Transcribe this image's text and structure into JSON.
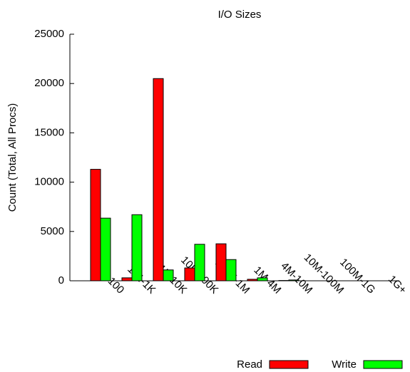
{
  "chart_data": {
    "type": "bar",
    "title": "I/O Sizes",
    "y_label": "Count (Total, All Procs)",
    "categories": [
      "0-100",
      "101-1K",
      "1K-10K",
      "10K-100K",
      "100K-1M",
      "1M-4M",
      "4M-10M",
      "10M-100M",
      "100M-1G",
      "1G+"
    ],
    "series": [
      {
        "name": "Read",
        "color": "#ff0000",
        "values": [
          11300,
          300,
          20500,
          1300,
          3750,
          150,
          30,
          0,
          0,
          0
        ]
      },
      {
        "name": "Write",
        "color": "#00ff00",
        "values": [
          6350,
          6700,
          1100,
          3700,
          2150,
          300,
          80,
          0,
          0,
          0
        ]
      }
    ],
    "ylim": [
      0,
      25000
    ],
    "yticks": [
      0,
      5000,
      10000,
      15000,
      20000,
      25000
    ],
    "legend": "bottom-right"
  }
}
